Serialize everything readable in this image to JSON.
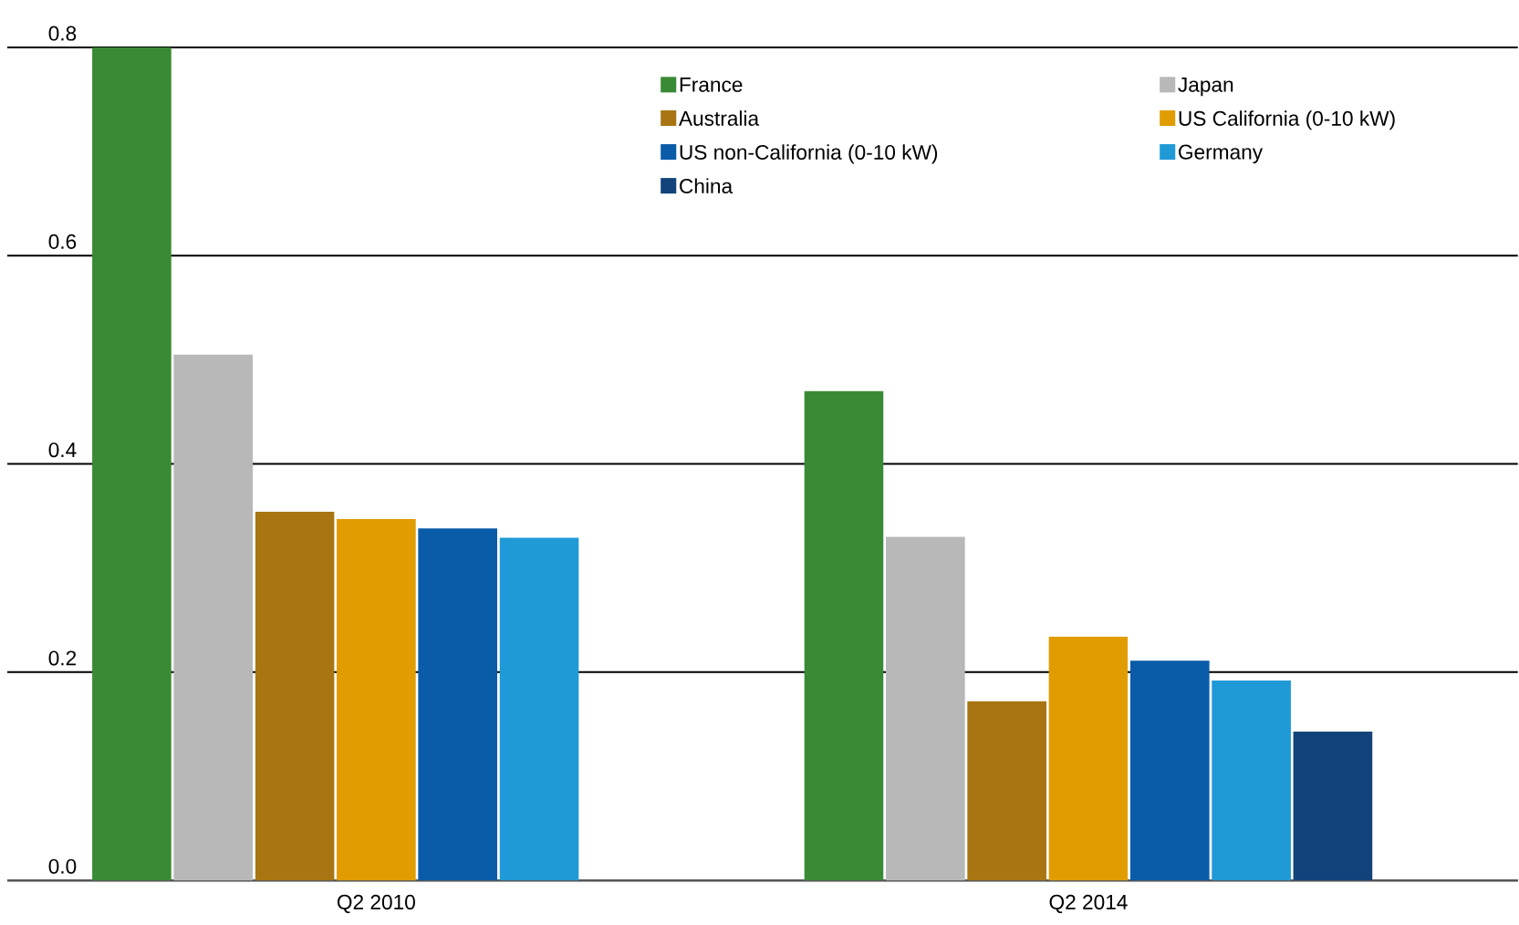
{
  "chart_data": {
    "type": "bar",
    "categories": [
      "Q2 2010",
      "Q2 2014"
    ],
    "series": [
      {
        "name": "France",
        "color": "#3a8a35",
        "values": [
          0.8,
          0.47
        ]
      },
      {
        "name": "Japan",
        "color": "#b8b8b8",
        "values": [
          0.505,
          0.33
        ]
      },
      {
        "name": "Australia",
        "color": "#a87512",
        "values": [
          0.354,
          0.172
        ]
      },
      {
        "name": "US California (0-10 kW)",
        "color": "#e09c00",
        "values": [
          0.347,
          0.234
        ]
      },
      {
        "name": "US non-California (0-10 kW)",
        "color": "#0a5ca8",
        "values": [
          0.338,
          0.211
        ]
      },
      {
        "name": "Germany",
        "color": "#1f9ad6",
        "values": [
          0.329,
          0.192
        ]
      },
      {
        "name": "China",
        "color": "#12437a",
        "values": [
          null,
          0.143
        ]
      }
    ],
    "ylim": [
      0,
      0.8
    ],
    "yticks": [
      {
        "value": 0,
        "label": "0.0"
      },
      0.2,
      0.4,
      0.6,
      0.8
    ],
    "grid": "y",
    "legend": "top right"
  }
}
